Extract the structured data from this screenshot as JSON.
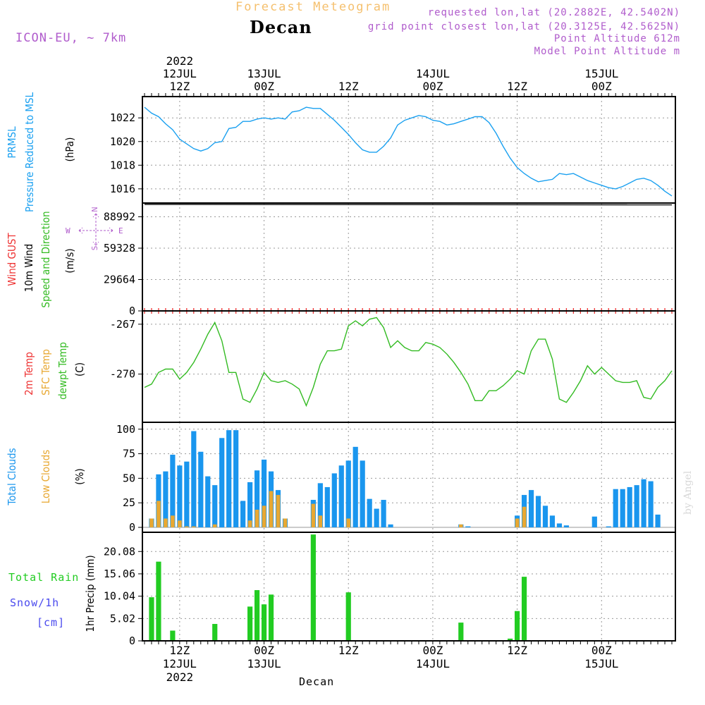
{
  "header": {
    "subtitle": "Forecast Meteogram",
    "title": "Decan",
    "model": "ICON-EU, ~ 7km",
    "requested": "requested lon,lat (20.2882E, 42.5402N)",
    "gridpoint": "grid point closest lon,lat (20.3125E, 42.5625N)",
    "point_altitude": "Point Altitude 612m",
    "model_altitude": "Model Point Altitude m",
    "watermark": "by Angel",
    "xlabel": "Decan"
  },
  "colors": {
    "pressure": "#1aa0f0",
    "clouds": "#1a96ee",
    "low_clouds": "#e8a832",
    "temp2m": "#ee3333",
    "sfctemp": "#e8a832",
    "dewpt": "#33bb22",
    "rain": "#22cc22",
    "snow": "#4a4aee",
    "info": "#b05ccc",
    "gust": "#ee3333"
  },
  "top_axis": {
    "year": "2022",
    "ticks": [
      {
        "t": 12,
        "line1": "12JUL",
        "line2": "12Z"
      },
      {
        "t": 24,
        "line1": "13JUL",
        "line2": "00Z"
      },
      {
        "t": 36,
        "line1": "",
        "line2": "12Z"
      },
      {
        "t": 48,
        "line1": "14JUL",
        "line2": "00Z"
      },
      {
        "t": 60,
        "line1": "",
        "line2": "12Z"
      },
      {
        "t": 72,
        "line1": "15JUL",
        "line2": "00Z"
      }
    ]
  },
  "bottom_axis": {
    "year": "2022",
    "ticks": [
      {
        "t": 12,
        "line1": "12Z",
        "line2": "12JUL"
      },
      {
        "t": 24,
        "line1": "00Z",
        "line2": "13JUL"
      },
      {
        "t": 36,
        "line1": "12Z",
        "line2": ""
      },
      {
        "t": 48,
        "line1": "00Z",
        "line2": "14JUL"
      },
      {
        "t": 60,
        "line1": "12Z",
        "line2": ""
      },
      {
        "t": 72,
        "line1": "00Z",
        "line2": "15JUL"
      }
    ]
  },
  "legends": {
    "pressure": [
      "PRMSL",
      "Pressure Reduced to MSL",
      "(hPa)"
    ],
    "wind": [
      "Wind GUST",
      "10m Wind",
      "Speed and Direction",
      "(m/s)"
    ],
    "compass": {
      "n": "N",
      "s": "S",
      "e": "E",
      "w": "W"
    },
    "temp": [
      "2m Temp",
      "SFC Temp",
      "dewpt Temp",
      "(C)"
    ],
    "clouds": [
      "Total Clouds",
      "Low Clouds",
      "(%)"
    ],
    "precip": [
      "Total  Rain",
      "Snow/1h",
      "[cm]",
      "1hr Precip (mm)"
    ]
  },
  "chart_data": [
    {
      "type": "line",
      "panel": "pressure",
      "ylabel": "(hPa)",
      "yticks": [
        1016,
        1018,
        1020,
        1022
      ],
      "ylim": [
        1014.8,
        1023.8
      ],
      "x": [
        7,
        8,
        9,
        10,
        11,
        12,
        13,
        14,
        15,
        16,
        17,
        18,
        19,
        20,
        21,
        22,
        23,
        24,
        25,
        26,
        27,
        28,
        29,
        30,
        31,
        32,
        33,
        34,
        35,
        36,
        37,
        38,
        39,
        40,
        41,
        42,
        43,
        44,
        45,
        46,
        47,
        48,
        49,
        50,
        51,
        52,
        53,
        54,
        55,
        56,
        57,
        58,
        59,
        60,
        61,
        62,
        63,
        64,
        65,
        66,
        67,
        68,
        69,
        70,
        71,
        72,
        73,
        74,
        75,
        76,
        77,
        78,
        79,
        80,
        81,
        82
      ],
      "series": [
        {
          "values": [
            1022.9,
            1022.4,
            1022.1,
            1021.5,
            1021.0,
            1020.2,
            1019.8,
            1019.4,
            1019.2,
            1019.4,
            1019.9,
            1020.0,
            1021.1,
            1021.2,
            1021.7,
            1021.7,
            1021.9,
            1022.0,
            1021.9,
            1022.0,
            1021.9,
            1022.5,
            1022.6,
            1022.9,
            1022.8,
            1022.8,
            1022.3,
            1021.8,
            1021.2,
            1020.6,
            1019.9,
            1019.3,
            1019.1,
            1019.1,
            1019.6,
            1020.3,
            1021.4,
            1021.8,
            1022.0,
            1022.2,
            1022.1,
            1021.8,
            1021.7,
            1021.4,
            1021.5,
            1021.7,
            1021.9,
            1022.1,
            1022.1,
            1021.6,
            1020.7,
            1019.6,
            1018.6,
            1017.8,
            1017.3,
            1016.9,
            1016.6,
            1016.7,
            1016.8,
            1017.3,
            1017.2,
            1017.3,
            1017.0,
            1016.7,
            1016.5,
            1016.3,
            1016.1,
            1016.0,
            1016.2,
            1016.5,
            1016.8,
            1016.9,
            1016.7,
            1016.3,
            1015.8,
            1015.4
          ]
        }
      ]
    },
    {
      "type": "line",
      "panel": "wind",
      "ylabel": "(m/s)",
      "yticks": [
        0,
        29664,
        59328,
        88992
      ],
      "ylim": [
        0,
        102000
      ],
      "x": [
        7,
        82
      ],
      "series": [
        {
          "name": "10m Wind",
          "values": [
            100700,
            100300
          ]
        }
      ],
      "gust_markers": "red crosses along zero line, hourly"
    },
    {
      "type": "line",
      "panel": "temp",
      "ylabel": "(C)",
      "yticks": [
        -267,
        -270
      ],
      "ylim": [
        -272.9,
        -266.2
      ],
      "x": [
        7,
        8,
        9,
        10,
        11,
        12,
        13,
        14,
        15,
        16,
        17,
        18,
        19,
        20,
        21,
        22,
        23,
        24,
        25,
        26,
        27,
        28,
        29,
        30,
        31,
        32,
        33,
        34,
        35,
        36,
        37,
        38,
        39,
        40,
        41,
        42,
        43,
        44,
        45,
        46,
        47,
        48,
        49,
        50,
        51,
        52,
        53,
        54,
        55,
        56,
        57,
        58,
        59,
        60,
        61,
        62,
        63,
        64,
        65,
        66,
        67,
        68,
        69,
        70,
        71,
        72,
        73,
        74,
        75,
        76,
        77,
        78,
        79,
        80,
        81,
        82
      ],
      "series": [
        {
          "values": [
            -270.8,
            -270.6,
            -269.9,
            -269.7,
            -269.7,
            -270.3,
            -269.9,
            -269.3,
            -268.5,
            -267.6,
            -266.9,
            -268.0,
            -269.9,
            -269.9,
            -271.5,
            -271.7,
            -270.9,
            -269.9,
            -270.4,
            -270.5,
            -270.4,
            -270.6,
            -270.9,
            -271.9,
            -270.8,
            -269.4,
            -268.6,
            -268.6,
            -268.5,
            -267.1,
            -266.8,
            -267.1,
            -266.7,
            -266.6,
            -267.2,
            -268.4,
            -268.0,
            -268.4,
            -268.6,
            -268.6,
            -268.1,
            -268.2,
            -268.4,
            -268.8,
            -269.3,
            -269.9,
            -270.6,
            -271.6,
            -271.6,
            -271.0,
            -271.0,
            -270.7,
            -270.3,
            -269.8,
            -270.0,
            -268.6,
            -267.9,
            -267.9,
            -269.1,
            -271.5,
            -271.7,
            -271.1,
            -270.4,
            -269.5,
            -270.0,
            -269.6,
            -270.0,
            -270.4,
            -270.5,
            -270.5,
            -270.4,
            -271.4,
            -271.5,
            -270.8,
            -270.4,
            -269.8
          ]
        }
      ]
    },
    {
      "type": "bar",
      "panel": "clouds",
      "ylabel": "(%)",
      "yticks": [
        0,
        25,
        50,
        75,
        100
      ],
      "ylim": [
        -5,
        107
      ],
      "x": [
        8,
        9,
        10,
        11,
        12,
        13,
        14,
        15,
        16,
        17,
        18,
        19,
        20,
        21,
        22,
        23,
        24,
        25,
        26,
        27,
        28,
        29,
        30,
        31,
        32,
        33,
        34,
        35,
        36,
        37,
        38,
        39,
        40,
        41,
        42,
        43,
        44,
        45,
        46,
        47,
        48,
        49,
        50,
        51,
        52,
        53,
        54,
        55,
        56,
        57,
        58,
        59,
        60,
        61,
        62,
        63,
        64,
        65,
        66,
        67,
        68,
        69,
        70,
        71,
        72,
        73,
        74,
        75,
        76,
        77,
        78,
        79,
        80,
        81,
        82
      ],
      "series": [
        {
          "name": "Total Clouds",
          "values": [
            9,
            54,
            57,
            74,
            63,
            67,
            98,
            77,
            52,
            43,
            91,
            99,
            99,
            27,
            46,
            58,
            69,
            57,
            38,
            9,
            0,
            0,
            0,
            28,
            45,
            41,
            55,
            63,
            68,
            82,
            68,
            29,
            19,
            28,
            3,
            0,
            0,
            0,
            0,
            0,
            0,
            0,
            0,
            0,
            3,
            1,
            0,
            0,
            0,
            0,
            0,
            0,
            12,
            33,
            38,
            32,
            22,
            12,
            4,
            2,
            0,
            0,
            0,
            11,
            0,
            1,
            39,
            39,
            41,
            43,
            49,
            47,
            13,
            0,
            0
          ]
        },
        {
          "name": "Low Clouds",
          "values": [
            9,
            27,
            9,
            12,
            7,
            1,
            1,
            0,
            0,
            3,
            0,
            0,
            0,
            0,
            7,
            18,
            22,
            37,
            33,
            9,
            0,
            0,
            0,
            24,
            12,
            0,
            0,
            0,
            9,
            0,
            0,
            0,
            0,
            0,
            0,
            0,
            0,
            0,
            0,
            0,
            0,
            0,
            0,
            0,
            3,
            0,
            0,
            0,
            0,
            0,
            0,
            0,
            9,
            21,
            0,
            0,
            0,
            0,
            0,
            0,
            0,
            0,
            0,
            0,
            0,
            0,
            0,
            0,
            0,
            0,
            0,
            0,
            0,
            0,
            0
          ]
        }
      ]
    },
    {
      "type": "bar",
      "panel": "precip",
      "ylabel": "1hr Precip (mm)",
      "yticks": [
        0,
        5.02,
        10.04,
        15.06,
        20.08
      ],
      "ylim": [
        0,
        24.4
      ],
      "x": [
        8,
        9,
        10,
        11,
        12,
        13,
        14,
        15,
        16,
        17,
        18,
        19,
        20,
        21,
        22,
        23,
        24,
        25,
        26,
        27,
        28,
        29,
        30,
        31,
        32,
        33,
        34,
        35,
        36,
        37,
        38,
        39,
        40,
        41,
        42,
        43,
        44,
        45,
        46,
        47,
        48,
        49,
        50,
        51,
        52,
        53,
        54,
        55,
        56,
        57,
        58,
        59,
        60,
        61,
        62,
        63,
        64,
        65,
        66,
        67,
        68,
        69,
        70,
        71,
        72,
        73,
        74,
        75,
        76,
        77,
        78,
        79,
        80,
        81,
        82
      ],
      "series": [
        {
          "name": "Total Rain",
          "values": [
            9.8,
            17.8,
            0,
            2.3,
            0,
            0,
            0,
            0,
            0,
            3.8,
            0,
            0,
            0,
            0,
            7.7,
            11.4,
            8.2,
            10.4,
            0,
            0,
            0,
            0,
            0,
            23.9,
            0,
            0,
            0,
            0,
            10.9,
            0,
            0,
            0,
            0,
            0,
            0,
            0,
            0,
            0,
            0,
            0,
            0,
            0,
            0,
            0,
            4.1,
            0,
            0,
            0,
            0,
            0,
            0,
            0.5,
            6.7,
            14.4,
            0,
            0,
            0,
            0,
            0,
            0,
            0,
            0,
            0,
            0,
            0,
            0,
            0,
            0,
            0,
            0,
            0,
            0,
            0,
            0,
            0
          ]
        }
      ]
    }
  ]
}
